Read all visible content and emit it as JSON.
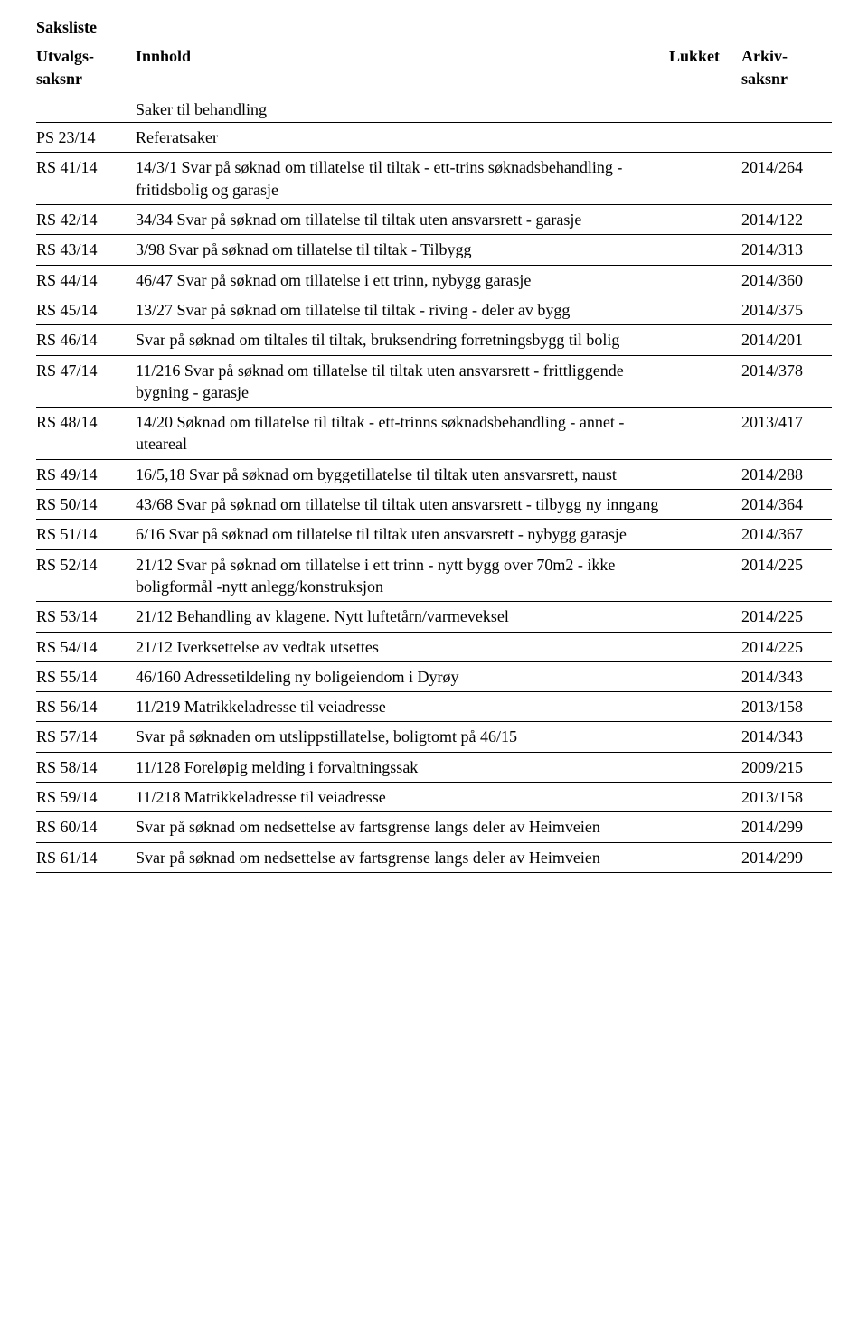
{
  "title": "Saksliste",
  "headers": {
    "saksnr_line1": "Utvalgs-",
    "saksnr_line2": "saksnr",
    "innhold": "Innhold",
    "lukket": "Lukket",
    "arkiv_line1": "Arkiv-",
    "arkiv_line2": "saksnr"
  },
  "section_heading": "Saker til behandling",
  "rows": [
    {
      "saksnr": "PS 23/14",
      "innhold": "Referatsaker",
      "arkiv": ""
    },
    {
      "saksnr": "RS 41/14",
      "innhold": "14/3/1 Svar på søknad om tillatelse til tiltak - ett-trins søknadsbehandling - fritidsbolig og garasje",
      "arkiv": "2014/264"
    },
    {
      "saksnr": "RS 42/14",
      "innhold": "34/34 Svar på søknad om tillatelse til tiltak uten ansvarsrett - garasje",
      "arkiv": "2014/122"
    },
    {
      "saksnr": "RS 43/14",
      "innhold": "3/98 Svar på søknad om tillatelse til tiltak - Tilbygg",
      "arkiv": "2014/313"
    },
    {
      "saksnr": "RS 44/14",
      "innhold": "46/47 Svar på søknad om tillatelse i ett trinn, nybygg garasje",
      "arkiv": "2014/360"
    },
    {
      "saksnr": "RS 45/14",
      "innhold": "13/27 Svar på søknad om tillatelse til tiltak - riving - deler av bygg",
      "arkiv": "2014/375"
    },
    {
      "saksnr": "RS 46/14",
      "innhold": "Svar på søknad om tiltales til tiltak, bruksendring forretningsbygg til bolig",
      "arkiv": "2014/201"
    },
    {
      "saksnr": "RS 47/14",
      "innhold": "11/216 Svar på søknad om tillatelse til tiltak uten ansvarsrett - frittliggende bygning - garasje",
      "arkiv": "2014/378"
    },
    {
      "saksnr": "RS 48/14",
      "innhold": "14/20 Søknad om tillatelse til tiltak - ett-trinns søknadsbehandling - annet - uteareal",
      "arkiv": "2013/417"
    },
    {
      "saksnr": "RS 49/14",
      "innhold": "16/5,18 Svar på søknad om byggetillatelse til tiltak uten ansvarsrett, naust",
      "arkiv": "2014/288"
    },
    {
      "saksnr": "RS 50/14",
      "innhold": "43/68 Svar på søknad om tillatelse til tiltak uten ansvarsrett - tilbygg ny inngang",
      "arkiv": "2014/364"
    },
    {
      "saksnr": "RS 51/14",
      "innhold": "6/16 Svar på søknad om tillatelse til tiltak uten ansvarsrett - nybygg garasje",
      "arkiv": "2014/367"
    },
    {
      "saksnr": "RS 52/14",
      "innhold": "21/12 Svar på søknad om tillatelse i ett trinn - nytt bygg over 70m2 - ikke boligformål -nytt anlegg/konstruksjon",
      "arkiv": "2014/225"
    },
    {
      "saksnr": "RS 53/14",
      "innhold": "21/12 Behandling av klagene. Nytt luftetårn/varmeveksel",
      "arkiv": "2014/225"
    },
    {
      "saksnr": "RS 54/14",
      "innhold": "21/12 Iverksettelse av vedtak utsettes",
      "arkiv": "2014/225"
    },
    {
      "saksnr": "RS 55/14",
      "innhold": "46/160 Adressetildeling ny boligeiendom i Dyrøy",
      "arkiv": "2014/343"
    },
    {
      "saksnr": "RS 56/14",
      "innhold": "11/219 Matrikkeladresse til veiadresse",
      "arkiv": "2013/158"
    },
    {
      "saksnr": "RS 57/14",
      "innhold": "Svar på søknaden om utslippstillatelse, boligtomt på 46/15",
      "arkiv": "2014/343"
    },
    {
      "saksnr": "RS 58/14",
      "innhold": "11/128 Foreløpig melding i forvaltningssak",
      "arkiv": "2009/215"
    },
    {
      "saksnr": "RS 59/14",
      "innhold": "11/218 Matrikkeladresse til veiadresse",
      "arkiv": "2013/158"
    },
    {
      "saksnr": "RS 60/14",
      "innhold": "Svar på søknad om nedsettelse av fartsgrense langs deler av Heimveien",
      "arkiv": "2014/299"
    },
    {
      "saksnr": "RS 61/14",
      "innhold": "Svar på søknad om nedsettelse av fartsgrense langs deler av Heimveien",
      "arkiv": "2014/299"
    }
  ]
}
